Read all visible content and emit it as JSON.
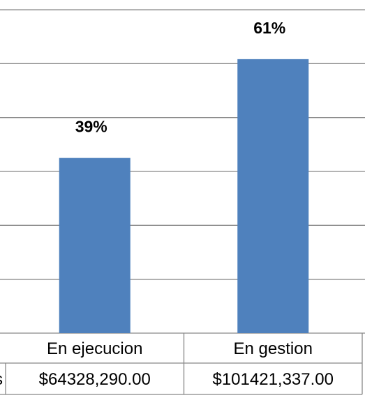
{
  "chart_data": {
    "type": "bar",
    "categories": [
      "En ejecucion",
      "En gestion"
    ],
    "values": [
      39,
      61
    ],
    "value_labels": [
      "39%",
      "61%"
    ],
    "color": "#4f81bd",
    "ylim": [
      0,
      72
    ],
    "yticks": [
      0,
      12,
      24,
      36,
      48,
      60,
      72
    ],
    "grid": true,
    "table_row_label": "s",
    "table_values": [
      "$64328,290.00",
      "$101421,337.00"
    ]
  }
}
